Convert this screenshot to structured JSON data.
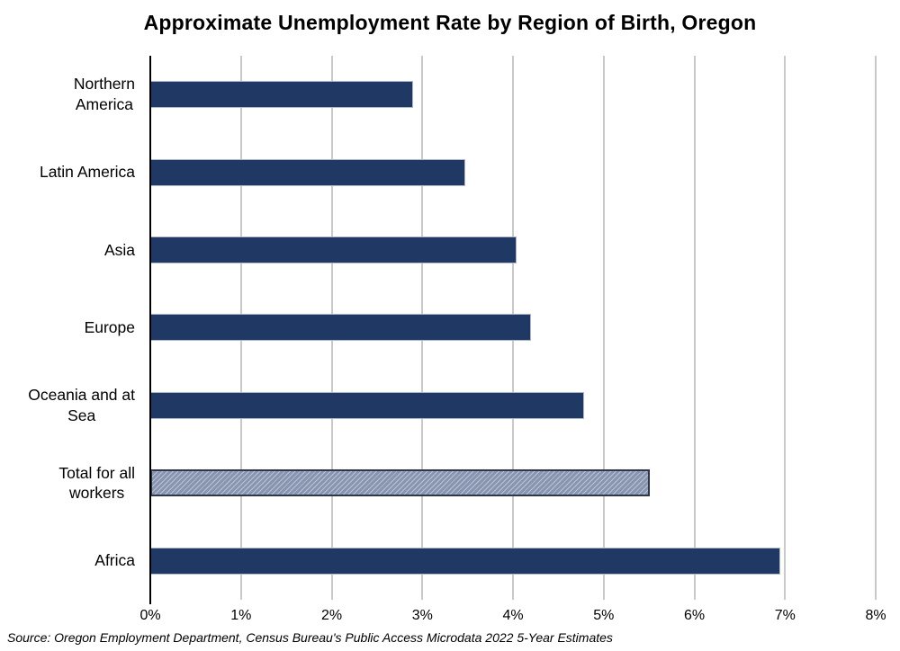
{
  "title": "Approximate Unemployment Rate by Region of Birth, Oregon",
  "source_note": "Source: Oregon Employment Department, Census Bureau's Public Access Microdata 2022 5-Year Estimates",
  "colors": {
    "bar_fill": "#1F3864",
    "bar_edge": "#AEB8C9",
    "total_bar_fill": "#8795B1",
    "total_bar_hatch": "#BCC4D4",
    "total_bar_border": "#31374A",
    "gridline": "#C9C9C9",
    "axis_line": "#000000",
    "text": "#000000"
  },
  "chart_data": {
    "type": "bar",
    "orientation": "horizontal",
    "title": "Approximate Unemployment Rate by Region of Birth, Oregon",
    "categories": [
      "Northern\nAmerica",
      "Latin America",
      "Asia",
      "Europe",
      "Oceania and at\nSea",
      "Total for all\nworkers",
      "Africa"
    ],
    "values": [
      2.9,
      3.47,
      4.04,
      4.2,
      4.78,
      5.51,
      6.95
    ],
    "unit": "percent",
    "xlabel": "",
    "ylabel": "",
    "xlim": [
      0,
      8
    ],
    "x_ticks": [
      "0%",
      "1%",
      "2%",
      "3%",
      "4%",
      "5%",
      "6%",
      "7%",
      "8%"
    ],
    "point_styles": [
      "solid",
      "solid",
      "solid",
      "solid",
      "solid",
      "hatched",
      "solid"
    ],
    "highlighted_category": "Total for all workers",
    "grid": true,
    "legend": false,
    "source": "Source: Oregon Employment Department, Census Bureau's Public Access Microdata 2022 5-Year Estimates"
  }
}
